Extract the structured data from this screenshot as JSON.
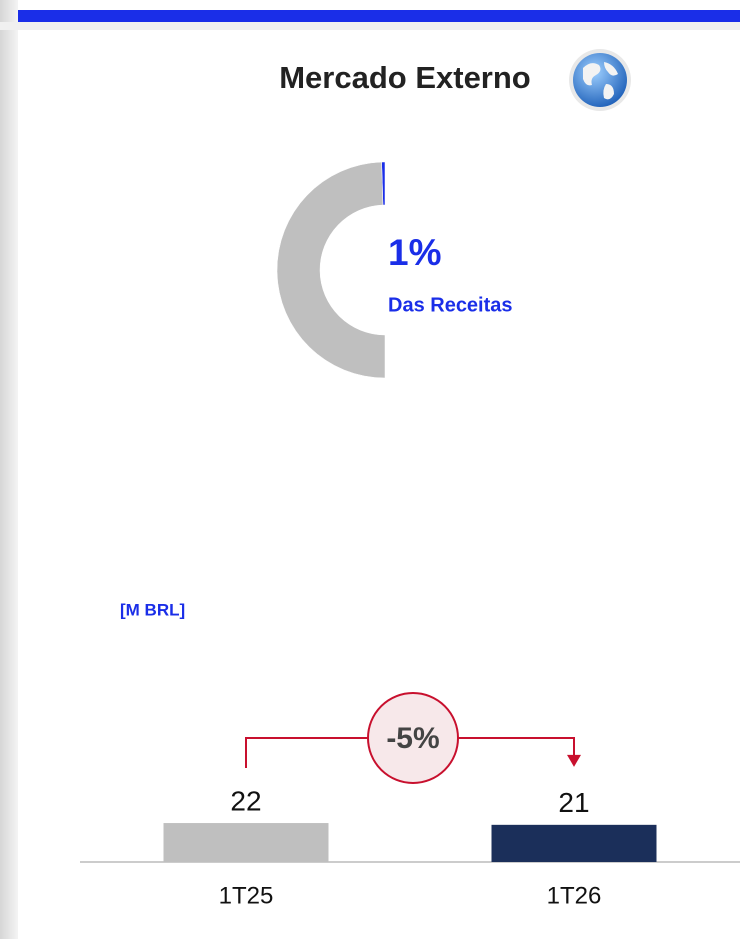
{
  "chart_data": [
    {
      "type": "pie",
      "title": "Mercado Externo",
      "subtitle": "Das Receitas",
      "values": [
        1,
        99
      ],
      "value_labels": [
        "1%",
        null
      ],
      "colors": [
        "#1a2ee8",
        "#bfbfbf"
      ],
      "half": true
    },
    {
      "type": "bar",
      "unit_label": "[M BRL]",
      "annotation": "-5%",
      "categories": [
        "1T25",
        "1T26"
      ],
      "values": [
        22,
        21
      ],
      "colors": [
        "#bfbfbf",
        "#1b2f5a"
      ]
    }
  ]
}
